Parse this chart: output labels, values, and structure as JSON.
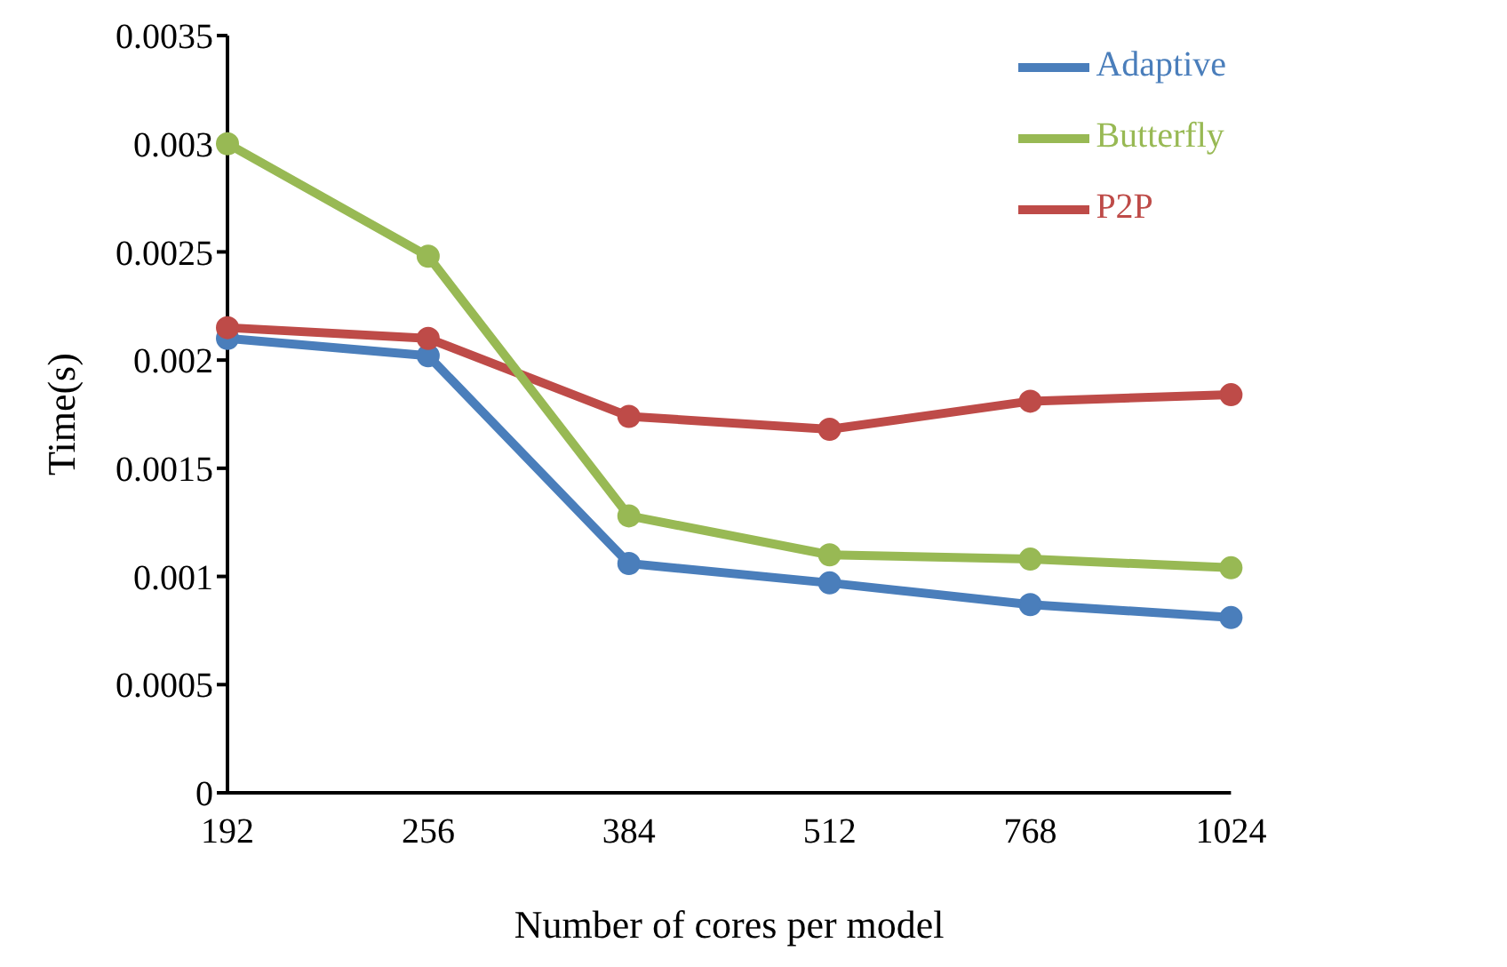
{
  "chart_data": {
    "type": "line",
    "xlabel": "Number of cores per model",
    "ylabel": "Time(s)",
    "categories": [
      "192",
      "256",
      "384",
      "512",
      "768",
      "1024"
    ],
    "series": [
      {
        "name": "Adaptive",
        "color": "#4a7ebb",
        "values": [
          0.0021,
          0.00202,
          0.00106,
          0.00097,
          0.00087,
          0.00081
        ]
      },
      {
        "name": "P2P",
        "color": "#be4b48",
        "values": [
          0.00215,
          0.0021,
          0.00174,
          0.00168,
          0.00181,
          0.00184
        ]
      },
      {
        "name": "Butterfly",
        "color": "#98b954",
        "values": [
          0.003,
          0.00248,
          0.00128,
          0.0011,
          0.00108,
          0.00104
        ]
      }
    ],
    "ylim": [
      0,
      0.0035
    ],
    "yticks": [
      0,
      0.0005,
      0.001,
      0.0015,
      0.002,
      0.0025,
      0.003,
      0.0035
    ],
    "grid": false,
    "legend": "top right",
    "marker": "circle",
    "line_style": "solid"
  }
}
